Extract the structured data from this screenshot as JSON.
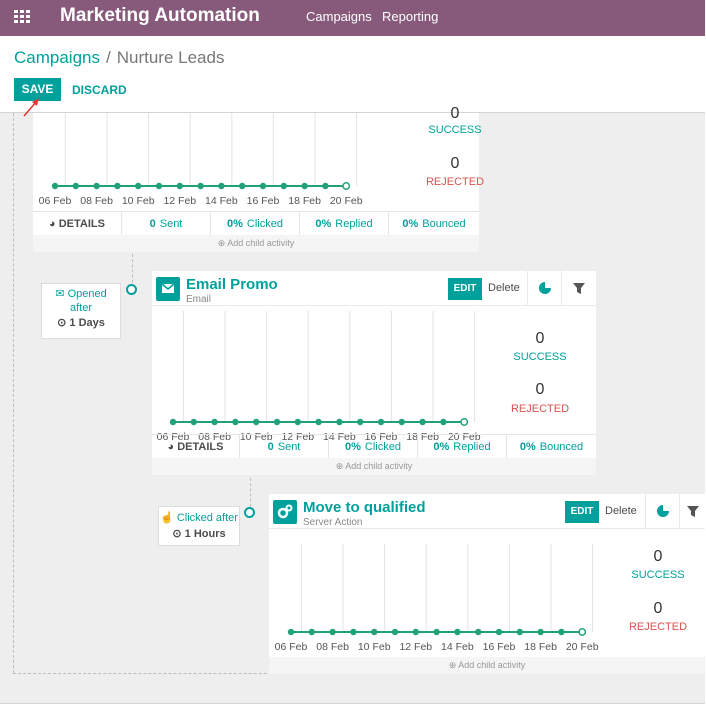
{
  "app": {
    "title": "Marketing Automation",
    "menu_icon": "grid-icon"
  },
  "nav": [
    {
      "label": "Campaigns"
    },
    {
      "label": "Reporting"
    }
  ],
  "breadcrumb": {
    "parent": "Campaigns",
    "separator": "/",
    "current": "Nurture Leads"
  },
  "buttons": {
    "save": "SAVE",
    "discard": "DISCARD"
  },
  "colors": {
    "brand": "#875a7b",
    "accent": "#00a09d",
    "danger": "#d9534f"
  },
  "chart_dates": [
    "06 Feb",
    "08 Feb",
    "10 Feb",
    "12 Feb",
    "14 Feb",
    "16 Feb",
    "18 Feb",
    "20 Feb"
  ],
  "activities": [
    {
      "title": "",
      "success_count": "0",
      "success_label": "SUCCESS",
      "rejected_count": "0",
      "rejected_label": "REJECTED",
      "details_label": "DETAILS",
      "sent": "0",
      "sent_label": "Sent",
      "clicked": "0%",
      "clicked_label": "Clicked",
      "replied": "0%",
      "replied_label": "Replied",
      "bounced": "0%",
      "bounced_label": "Bounced",
      "add_child": "Add child activity"
    },
    {
      "title": "Email Promo",
      "type": "Email",
      "icon": "envelope-icon",
      "edit": "EDIT",
      "delete": "Delete",
      "trigger": {
        "line1": "Opened",
        "line2": "after",
        "delay": "1 Days",
        "icon": "envelope-open-icon"
      },
      "success_count": "0",
      "success_label": "SUCCESS",
      "rejected_count": "0",
      "rejected_label": "REJECTED",
      "details_label": "DETAILS",
      "sent": "0",
      "sent_label": "Sent",
      "clicked": "0%",
      "clicked_label": "Clicked",
      "replied": "0%",
      "replied_label": "Replied",
      "bounced": "0%",
      "bounced_label": "Bounced",
      "add_child": "Add child activity"
    },
    {
      "title": "Move to qualified",
      "type": "Server Action",
      "icon": "gears-icon",
      "edit": "EDIT",
      "delete": "Delete",
      "trigger": {
        "line1": "Clicked after",
        "delay": "1 Hours",
        "icon": "hand-pointer-icon"
      },
      "success_count": "0",
      "success_label": "SUCCESS",
      "rejected_count": "0",
      "rejected_label": "REJECTED",
      "add_child": "Add child activity"
    }
  ]
}
